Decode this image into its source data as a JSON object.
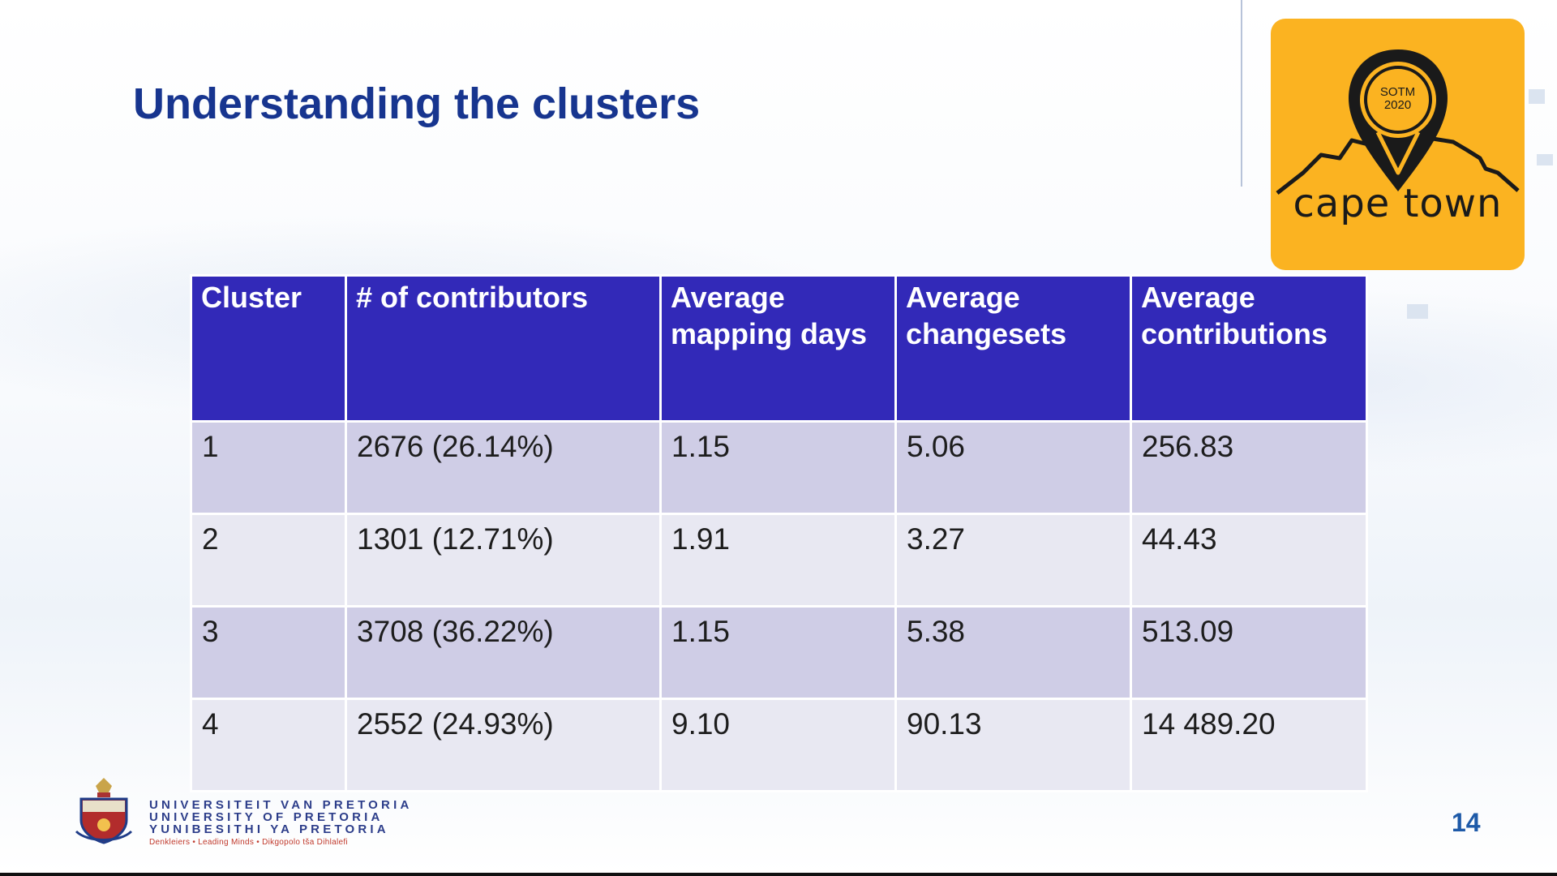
{
  "slide": {
    "title": "Understanding the clusters",
    "page_number": "14"
  },
  "logo": {
    "badge_line1": "SOTM",
    "badge_line2": "2020",
    "city": "cape town",
    "background_color": "#fbb321"
  },
  "table": {
    "headers": [
      "Cluster",
      "# of contributors",
      "Average mapping days",
      "Average changesets",
      "Average contributions"
    ],
    "rows": [
      {
        "cluster": "1",
        "contributors": "2676 (26.14%)",
        "mapping_days": "1.15",
        "changesets": "5.06",
        "contributions": "256.83"
      },
      {
        "cluster": "2",
        "contributors": "1301 (12.71%)",
        "mapping_days": "1.91",
        "changesets": "3.27",
        "contributions": "44.43"
      },
      {
        "cluster": "3",
        "contributors": "3708 (36.22%)",
        "mapping_days": "1.15",
        "changesets": "5.38",
        "contributions": "513.09"
      },
      {
        "cluster": "4",
        "contributors": "2552 (24.93%)",
        "mapping_days": "9.10",
        "changesets": "90.13",
        "contributions": "14 489.20"
      }
    ],
    "header_color": "#3229b8",
    "row_color_odd": "#cfcde6",
    "row_color_even": "#e8e8f2"
  },
  "university": {
    "line1": "UNIVERSITEIT VAN PRETORIA",
    "line2": "UNIVERSITY OF PRETORIA",
    "line3": "YUNIBESITHI YA PRETORIA",
    "motto": "Denkleiers • Leading Minds • Dikgopolo tša Dihlalefi"
  }
}
